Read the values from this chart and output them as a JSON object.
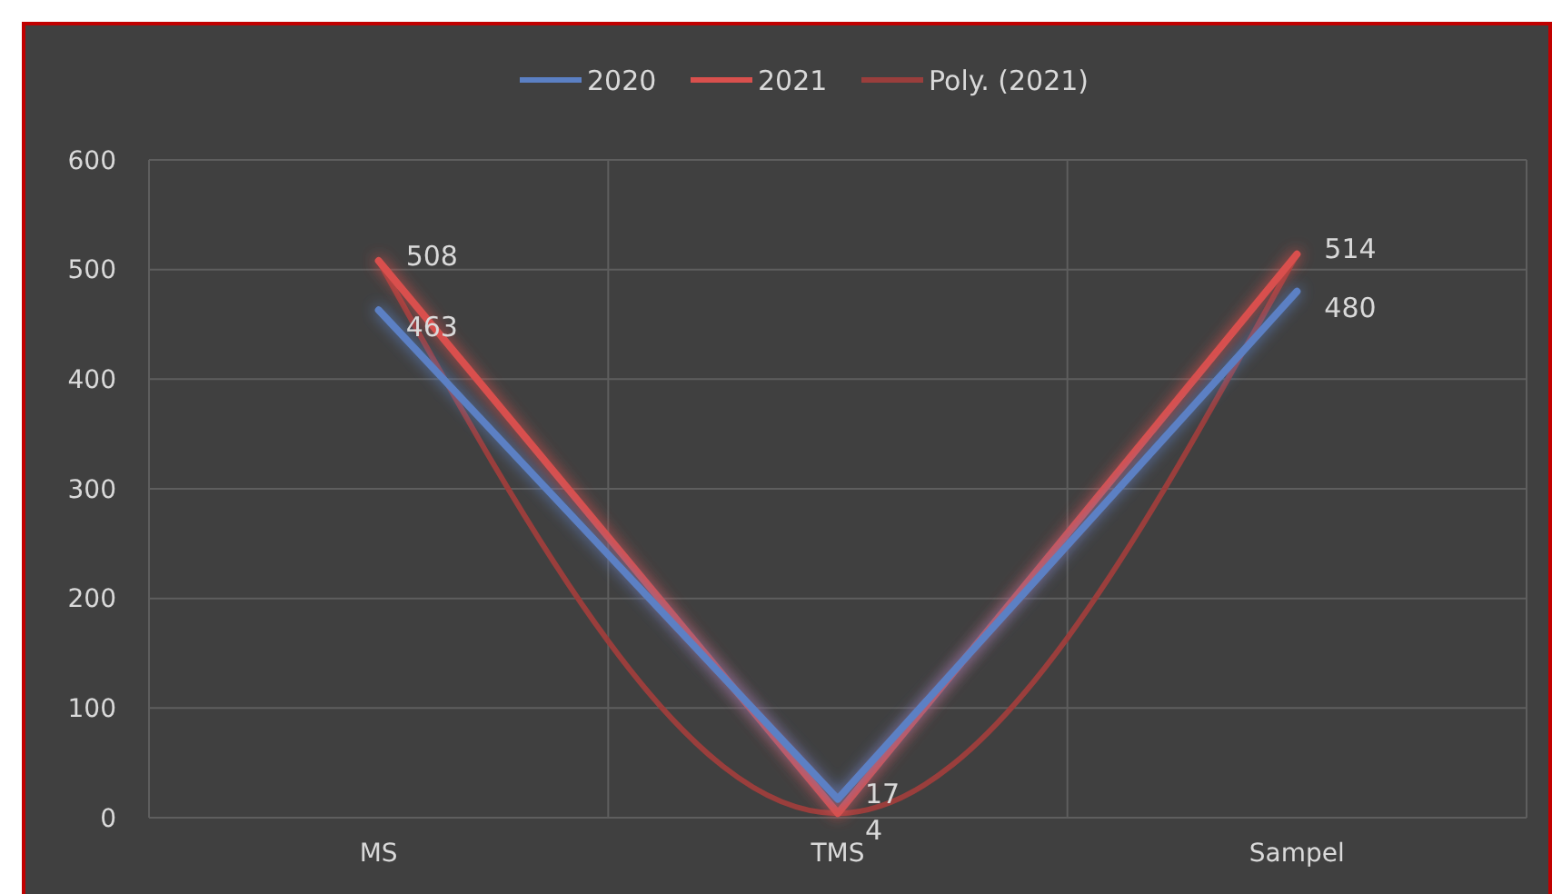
{
  "chart_data": {
    "type": "line",
    "categories": [
      "MS",
      "TMS",
      "Sampel"
    ],
    "series": [
      {
        "name": "2020",
        "color": "#5b80c4",
        "values": [
          463,
          17,
          480
        ],
        "value_labels": [
          "463",
          "17",
          "480"
        ]
      },
      {
        "name": "2021",
        "color": "#d9504d",
        "values": [
          508,
          4,
          514
        ],
        "value_labels": [
          "508",
          "4",
          "514"
        ]
      },
      {
        "name": "Poly. (2021)",
        "type": "line",
        "color": "#9a3e3c",
        "x": [
          "MS",
          "TMS",
          "Sampel"
        ],
        "values": [
          508,
          4,
          514
        ]
      }
    ],
    "ylim": [
      0,
      600
    ],
    "yticks": [
      0,
      100,
      200,
      300,
      400,
      500,
      600
    ],
    "grid": true,
    "legend": "top"
  }
}
